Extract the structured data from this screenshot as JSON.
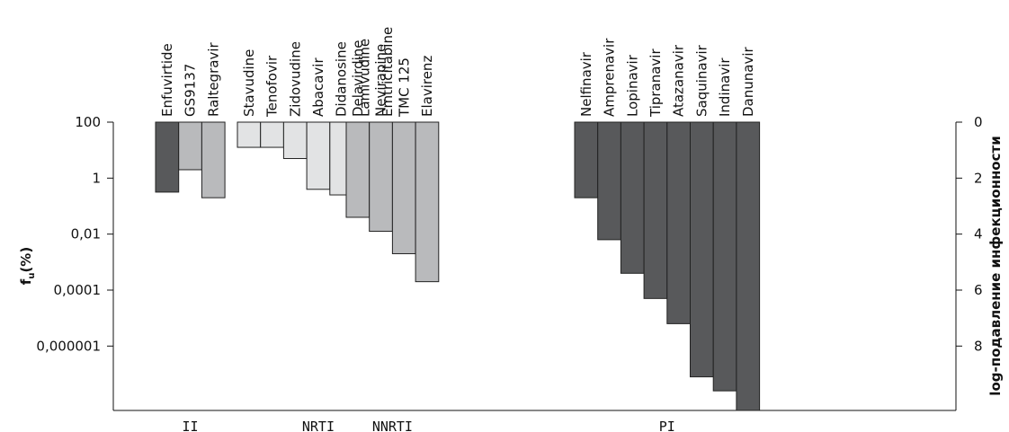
{
  "chart_data": {
    "type": "bar",
    "title": "",
    "ylabel": "fu(%)",
    "ylabel_main": "f",
    "ylabel_sub": "u",
    "ylabel_suffix": "(%)",
    "y2label": "log-подавление инфекционности",
    "y_ticks": [
      "100",
      "1",
      "0,01",
      "0,0001",
      "0,000001"
    ],
    "y2_ticks": [
      "0",
      "2",
      "4",
      "6",
      "8"
    ],
    "y2lim": [
      0,
      10.3
    ],
    "grid": false,
    "colors": {
      "II-dark": "#58595b",
      "II": "#b9babc",
      "NRTI": "#e2e3e4",
      "NNRTI": "#b9babc",
      "PI": "#58595b"
    },
    "groups": [
      {
        "name": "II",
        "bars": [
          {
            "name": "Enfuvirtide",
            "value": 2.5,
            "color": "#58595b"
          },
          {
            "name": "GS9137",
            "value": 1.7,
            "color": "#b9babc"
          },
          {
            "name": "Raltegravir",
            "value": 2.7,
            "color": "#b9babc"
          }
        ]
      },
      {
        "name": "NRTI",
        "bars": [
          {
            "name": "Stavudine",
            "value": 0.9,
            "color": "#e2e3e4"
          },
          {
            "name": "Tenofovir",
            "value": 0.9,
            "color": "#e2e3e4"
          },
          {
            "name": "Zidovudine",
            "value": 1.3,
            "color": "#e2e3e4"
          },
          {
            "name": "Abacavir",
            "value": 2.4,
            "color": "#e2e3e4"
          },
          {
            "name": "Didanosine",
            "value": 2.6,
            "color": "#e2e3e4"
          },
          {
            "name": "Lamivudine",
            "value": 3.1,
            "color": "#e2e3e4"
          },
          {
            "name": "Emtricitabine",
            "value": 3.6,
            "color": "#e2e3e4"
          }
        ]
      },
      {
        "name": "NNRTI",
        "bars": [
          {
            "name": "Delavirdine",
            "value": 3.4,
            "color": "#b9babc"
          },
          {
            "name": "Nevirapine",
            "value": 3.9,
            "color": "#b9babc"
          },
          {
            "name": "TMC 125",
            "value": 4.7,
            "color": "#b9babc"
          },
          {
            "name": "Elavirenz",
            "value": 5.7,
            "color": "#b9babc"
          }
        ]
      },
      {
        "name": "PI",
        "bars": [
          {
            "name": "Nelfinavir",
            "value": 2.7,
            "color": "#58595b"
          },
          {
            "name": "Amprenavir",
            "value": 4.2,
            "color": "#58595b"
          },
          {
            "name": "Lopinavir",
            "value": 5.4,
            "color": "#58595b"
          },
          {
            "name": "Tipranavir",
            "value": 6.3,
            "color": "#58595b"
          },
          {
            "name": "Atazanavir",
            "value": 7.2,
            "color": "#58595b"
          },
          {
            "name": "Saquinavir",
            "value": 9.1,
            "color": "#58595b"
          },
          {
            "name": "Indinavir",
            "value": 9.6,
            "color": "#58595b"
          },
          {
            "name": "Danunavir",
            "value": 10.3,
            "color": "#58595b"
          }
        ]
      }
    ]
  }
}
